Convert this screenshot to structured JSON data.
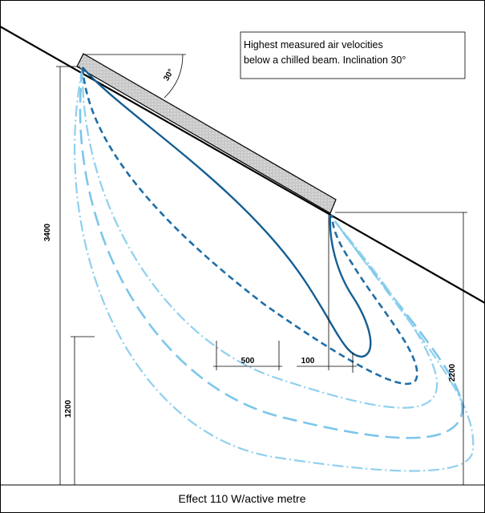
{
  "diagram": {
    "note": [
      "Highest measured air velocities",
      "below a chilled beam. Inclination 30°"
    ],
    "angle_label": "30°",
    "dimensions": {
      "total_height": "3400",
      "occupied_height": "1200",
      "beam_height": "2200",
      "width_a": "500",
      "width_b": "100"
    },
    "caption": "Effect 110 W/active metre"
  }
}
